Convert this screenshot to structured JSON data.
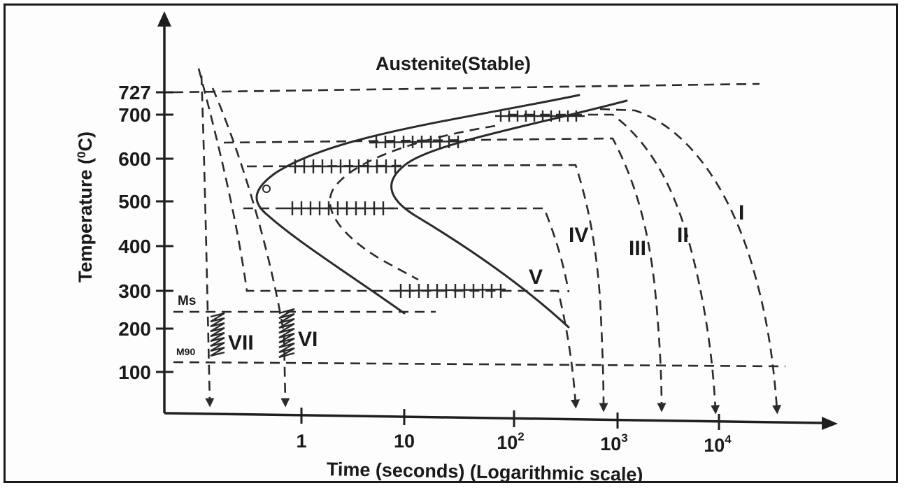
{
  "title": "Austenite(Stable)",
  "axes": {
    "ylabel": "Temperature (°C)",
    "xlabel": "Time (seconds) (Logarithmic scale)",
    "y_ticks": [
      "727",
      "700",
      "600",
      "500",
      "400",
      "300",
      "200",
      "100"
    ],
    "x_ticks": [
      "1",
      "10",
      "10",
      "10",
      "10"
    ],
    "x_tick_exponents": [
      "",
      "",
      "2",
      "3",
      "4"
    ]
  },
  "levels": {
    "ms": "Ms",
    "m90": "M90"
  },
  "curve_labels": [
    "I",
    "II",
    "III",
    "IV",
    "V",
    "VI",
    "VII"
  ],
  "colors": {
    "ink": "#1a1a1a",
    "background": "#fdfdfd"
  }
}
